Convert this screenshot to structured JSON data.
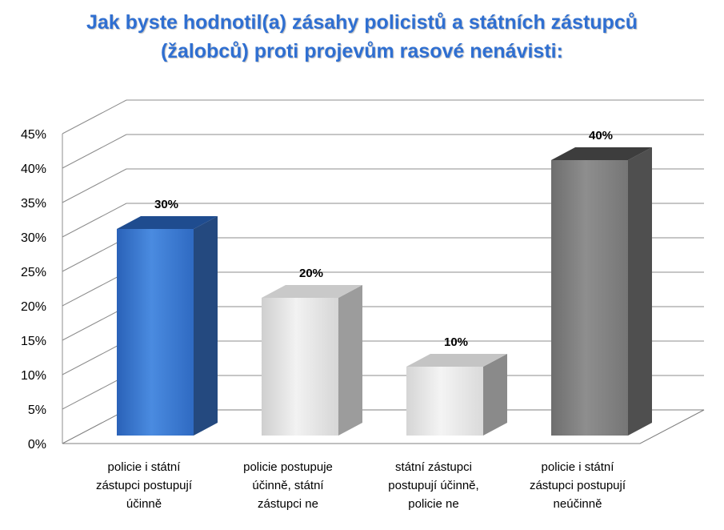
{
  "title": {
    "line1": "Jak byste hodnotil(a) zásahy policistů a státních zástupců",
    "line2": "(žalobců) proti projevům rasové nenávisti:"
  },
  "chart_data": {
    "type": "bar",
    "title": "Jak byste hodnotil(a) zásahy policistů a státních zástupců (žalobců) proti projevům rasové nenávisti:",
    "categories": [
      [
        "policie i státní",
        "zástupci postupují",
        "účinně"
      ],
      [
        "policie postupuje",
        "účinně, státní",
        "zástupci ne"
      ],
      [
        "státní zástupci",
        "postupují účinně,",
        "policie ne"
      ],
      [
        "policie i státní",
        "zástupci postupují",
        "neúčinně"
      ]
    ],
    "values": [
      30,
      20,
      10,
      40
    ],
    "data_labels": [
      "30%",
      "20%",
      "10%",
      "40%"
    ],
    "y_ticks": [
      "0%",
      "5%",
      "10%",
      "15%",
      "20%",
      "25%",
      "30%",
      "35%",
      "40%",
      "45%"
    ],
    "ylim": [
      0,
      45
    ],
    "grid": true,
    "legend": "none",
    "colors": [
      {
        "front": "#3a7bd5",
        "side": "#24497f",
        "top": "#5d9ae8"
      },
      {
        "front": "#dcdcdc",
        "side": "#9c9c9c",
        "top": "#ececec"
      },
      {
        "front": "#e4e4e4",
        "side": "#8a8a8a",
        "top": "#f0f0f0"
      },
      {
        "front": "#808080",
        "side": "#555555",
        "top": "#4a4a4a"
      }
    ]
  }
}
